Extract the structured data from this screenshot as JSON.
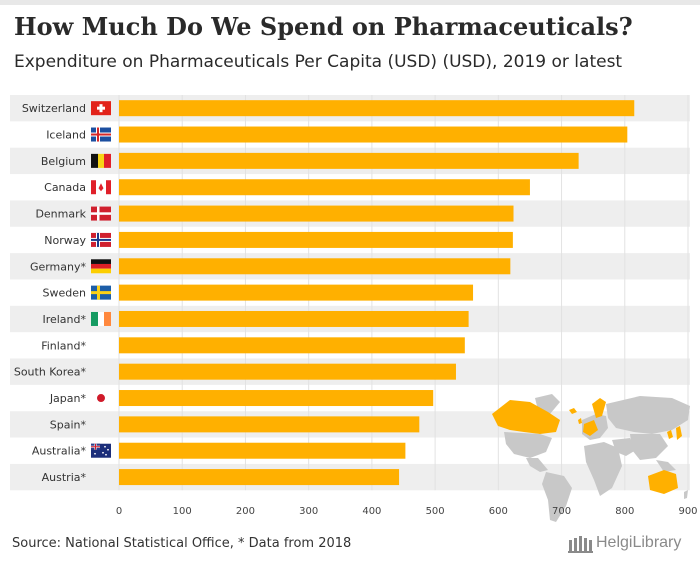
{
  "header": {
    "title": "How Much Do We Spend on Pharmaceuticals?",
    "subtitle": "Expenditure on Pharmaceuticals Per Capita (USD) (USD), 2019 or latest"
  },
  "footer": {
    "source": "Source: National Statistical Office, * Data from 2018",
    "brand": "HelgiLibrary"
  },
  "colors": {
    "bar": "#FFB000",
    "row_band": "#eeeeee",
    "map_land": "#c8c8c8",
    "map_highlight": "#FFB000"
  },
  "chart_data": {
    "type": "bar",
    "orientation": "horizontal",
    "title": "How Much Do We Spend on Pharmaceuticals?",
    "subtitle": "Expenditure on Pharmaceuticals Per Capita (USD) (USD), 2019 or latest",
    "categories": [
      "Switzerland",
      "Iceland",
      "Belgium",
      "Canada",
      "Denmark",
      "Norway",
      "Germany*",
      "Sweden",
      "Ireland*",
      "Finland*",
      "South Korea*",
      "Japan*",
      "Spain*",
      "Australia*",
      "Austria*"
    ],
    "flags": [
      "switzerland-flag-icon",
      "iceland-flag-icon",
      "belgium-flag-icon",
      "canada-flag-icon",
      "denmark-flag-icon",
      "norway-flag-icon",
      "germany-flag-icon",
      "sweden-flag-icon",
      "ireland-flag-icon",
      "",
      "",
      "japan-flag-icon",
      "",
      "australia-flag-icon",
      ""
    ],
    "values": [
      815,
      804,
      727,
      650,
      624,
      623,
      619,
      560,
      553,
      547,
      533,
      497,
      475,
      453,
      443
    ],
    "xlim": [
      0,
      900
    ],
    "xticks": [
      0,
      100,
      200,
      300,
      400,
      500,
      600,
      700,
      800,
      900
    ],
    "grid": true,
    "legend": "none"
  }
}
